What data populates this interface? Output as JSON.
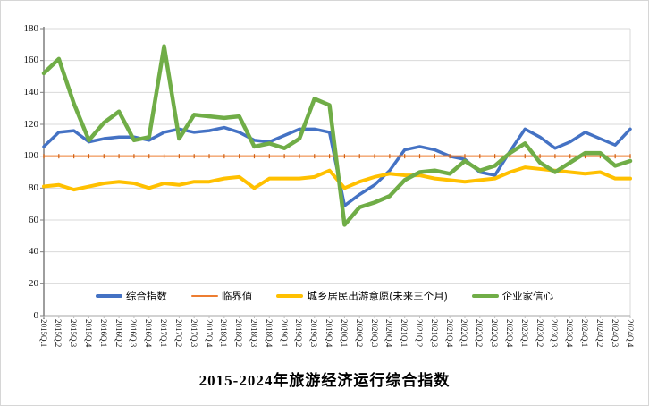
{
  "window": {
    "background": "#FFFFFF",
    "border_color": "#D6D6D6"
  },
  "chart_data": {
    "type": "line",
    "title": "2015-2024年旅游经济运行综合指数",
    "xlabel": "",
    "ylabel": "",
    "ylim": [
      0,
      180
    ],
    "ytick_step": 20,
    "yticks": [
      0,
      20,
      40,
      60,
      80,
      100,
      120,
      140,
      160,
      180
    ],
    "grid": true,
    "legend_position": "bottom-inside",
    "gridline_color": "#D9D9D9",
    "axis_color": "#7F7F7F",
    "categories": [
      "2015Q.1",
      "2015Q.2",
      "2015Q.3",
      "2015Q.4",
      "2016Q.1",
      "2016Q.2",
      "2016Q.3",
      "2016Q.4",
      "2017Q.1",
      "2017Q.2",
      "2017Q.3",
      "2017Q.4",
      "2018Q.1",
      "2018Q.2",
      "2018Q.3",
      "2018Q.4",
      "2019Q.1",
      "2019Q.2",
      "2019Q.3",
      "2019Q.4",
      "2020Q.1",
      "2020Q.2",
      "2020Q.3",
      "2020Q.4",
      "2021Q.1",
      "2021Q.2",
      "2021Q.3",
      "2021Q.4",
      "2022Q.1",
      "2022Q.2",
      "2022Q.3",
      "2022Q.4",
      "2023Q.1",
      "2023Q.2",
      "2023Q.3",
      "2023Q.4",
      "2024Q.1",
      "2024Q.2",
      "2024Q.3",
      "2024Q.4"
    ],
    "series": [
      {
        "id": "composite-index",
        "name": "综合指数",
        "color": "#4472C4",
        "stroke_width": 3.5,
        "values": [
          106,
          115,
          116,
          109,
          111,
          112,
          112,
          110,
          115,
          117,
          115,
          116,
          118,
          115,
          110,
          109,
          113,
          117,
          117,
          115,
          69,
          76,
          82,
          91,
          104,
          106,
          104,
          100,
          98,
          90,
          88,
          103,
          117,
          112,
          105,
          109,
          115,
          111,
          107,
          117
        ]
      },
      {
        "id": "threshold",
        "name": "临界值",
        "color": "#ED7D31",
        "stroke_width": 2,
        "tick_markers": true,
        "values": [
          100,
          100,
          100,
          100,
          100,
          100,
          100,
          100,
          100,
          100,
          100,
          100,
          100,
          100,
          100,
          100,
          100,
          100,
          100,
          100,
          100,
          100,
          100,
          100,
          100,
          100,
          100,
          100,
          100,
          100,
          100,
          100,
          100,
          100,
          100,
          100,
          100,
          100,
          100,
          100
        ]
      },
      {
        "id": "travel-willingness",
        "name": "城乡居民出游意愿(未来三个月)",
        "color": "#FFC000",
        "stroke_width": 4,
        "values": [
          81,
          82,
          79,
          81,
          83,
          84,
          83,
          80,
          83,
          82,
          84,
          84,
          86,
          87,
          80,
          86,
          86,
          86,
          87,
          91,
          80,
          84,
          87,
          89,
          88,
          88,
          86,
          85,
          84,
          85,
          86,
          90,
          93,
          92,
          91,
          90,
          89,
          90,
          86,
          86
        ]
      },
      {
        "id": "entrepreneur-confidence",
        "name": "企业家信心",
        "color": "#70AD47",
        "stroke_width": 4.5,
        "values": [
          152,
          161,
          133,
          110,
          121,
          128,
          110,
          112,
          169,
          111,
          126,
          125,
          124,
          125,
          106,
          108,
          105,
          111,
          136,
          132,
          57,
          68,
          71,
          75,
          85,
          90,
          91,
          89,
          97,
          91,
          94,
          102,
          108,
          96,
          90,
          96,
          102,
          102,
          94,
          97
        ]
      }
    ]
  }
}
